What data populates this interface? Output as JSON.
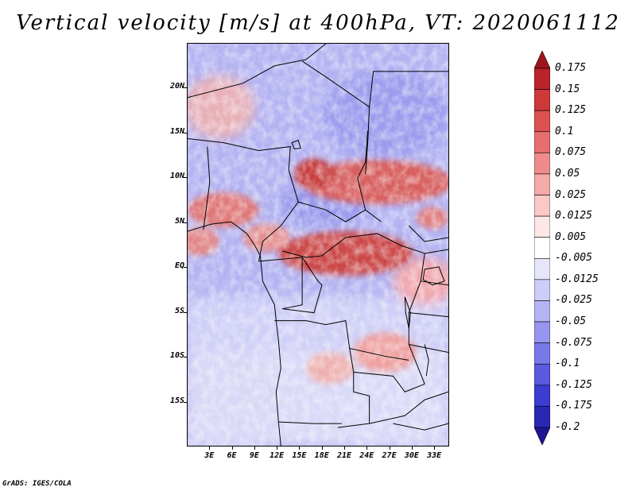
{
  "title": "Vertical velocity [m/s] at 400hPa, VT: 2020061112",
  "footer": "GrADS: IGES/COLA",
  "map": {
    "lon_range": [
      0,
      35
    ],
    "lat_range": [
      -20,
      25
    ],
    "lat_labels": [
      "20N",
      "15N",
      "10N",
      "5N",
      "EQ",
      "5S",
      "10S",
      "15S"
    ],
    "lat_values": [
      20,
      15,
      10,
      5,
      0,
      -5,
      -10,
      -15
    ],
    "lon_labels": [
      "3E",
      "6E",
      "9E",
      "12E",
      "15E",
      "18E",
      "21E",
      "24E",
      "27E",
      "30E",
      "33E"
    ],
    "lon_values": [
      3,
      6,
      9,
      12,
      15,
      18,
      21,
      24,
      27,
      30,
      33
    ]
  },
  "colorbar": {
    "labels": [
      "0.175",
      "0.15",
      "0.125",
      "0.1",
      "0.075",
      "0.05",
      "0.025",
      "0.0125",
      "0.005",
      "-0.005",
      "-0.0125",
      "-0.025",
      "-0.05",
      "-0.075",
      "-0.1",
      "-0.125",
      "-0.175",
      "-0.2"
    ],
    "colors": [
      "#a0141e",
      "#b9232a",
      "#cd3838",
      "#dc5050",
      "#e66e6e",
      "#ee8c8c",
      "#f5aaaa",
      "#fac8c8",
      "#fde6e6",
      "#ffffff",
      "#e6e6fa",
      "#cdcdf8",
      "#b4b4f5",
      "#9696f0",
      "#7878e8",
      "#5a5ae0",
      "#3c3cd2",
      "#2828b4",
      "#1e1496"
    ]
  }
}
